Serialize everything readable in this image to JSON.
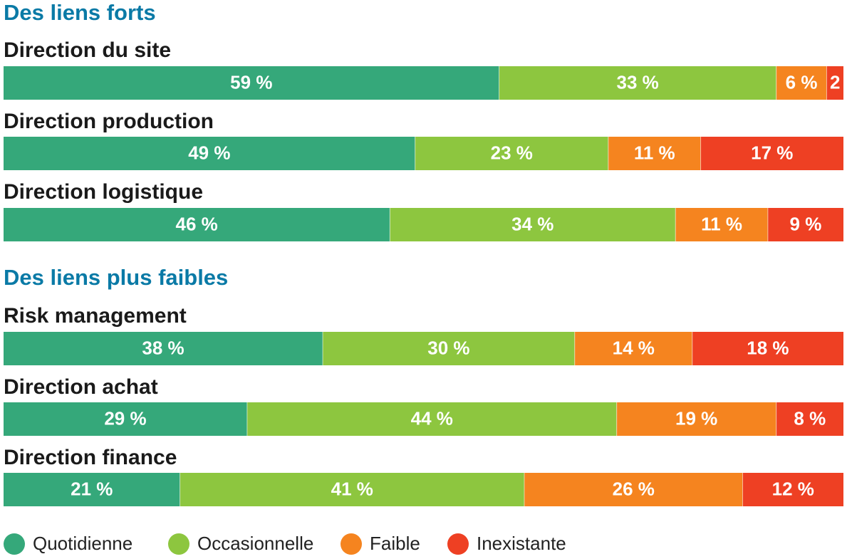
{
  "chart_data": {
    "type": "bar",
    "orientation": "horizontal-stacked",
    "unit": "%",
    "xlim": [
      0,
      100
    ],
    "colors": {
      "section_title": "#0a7aa6",
      "Quotidienne": "#35a87a",
      "Occasionnelle": "#8dc63f",
      "Faible": "#f5841f",
      "Inexistante": "#ee4023"
    },
    "legend": {
      "position": "bottom-left",
      "items": [
        "Quotidienne",
        "Occasionnelle",
        "Faible",
        "Inexistante"
      ]
    },
    "groups": [
      {
        "title": "Des liens forts",
        "rows": [
          {
            "label": "Direction du site",
            "values": [
              59,
              33,
              6,
              2
            ],
            "value_labels": [
              "59 %",
              "33 %",
              "6 %",
              "2"
            ]
          },
          {
            "label": "Direction production",
            "values": [
              49,
              23,
              11,
              17
            ],
            "value_labels": [
              "49 %",
              "23 %",
              "11 %",
              "17 %"
            ]
          },
          {
            "label": "Direction logistique",
            "values": [
              46,
              34,
              11,
              9
            ],
            "value_labels": [
              "46 %",
              "34 %",
              "11 %",
              "9 %"
            ]
          }
        ]
      },
      {
        "title": "Des liens plus faibles",
        "rows": [
          {
            "label": "Risk management",
            "values": [
              38,
              30,
              14,
              18
            ],
            "value_labels": [
              "38 %",
              "30 %",
              "14 %",
              "18 %"
            ]
          },
          {
            "label": "Direction achat",
            "values": [
              29,
              44,
              19,
              8
            ],
            "value_labels": [
              "29 %",
              "44 %",
              "19 %",
              "8 %"
            ]
          },
          {
            "label": "Direction finance",
            "values": [
              21,
              41,
              26,
              12
            ],
            "value_labels": [
              "21 %",
              "41 %",
              "26 %",
              "12 %"
            ]
          }
        ]
      }
    ]
  }
}
